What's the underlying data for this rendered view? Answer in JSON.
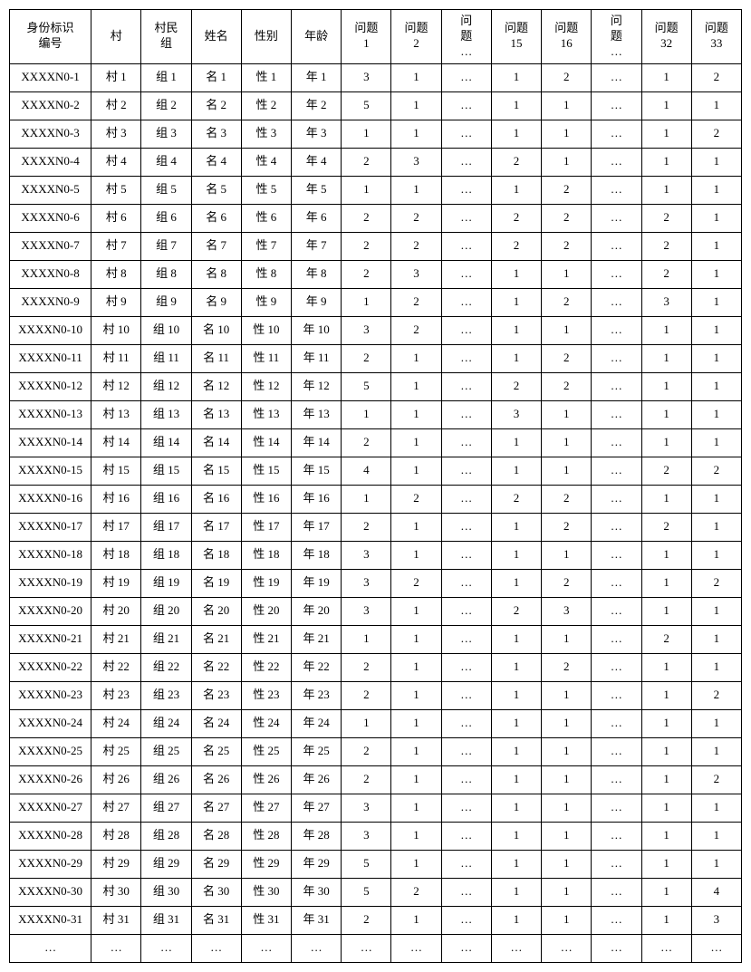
{
  "table": {
    "columns": [
      {
        "key": "id",
        "label": "身份标识\n编号",
        "class": "col-id"
      },
      {
        "key": "village",
        "label": "村",
        "class": "col-village"
      },
      {
        "key": "group",
        "label": "村民\n组",
        "class": "col-group"
      },
      {
        "key": "name",
        "label": "姓名",
        "class": "col-name"
      },
      {
        "key": "gender",
        "label": "性别",
        "class": "col-gender"
      },
      {
        "key": "age",
        "label": "年龄",
        "class": "col-age"
      },
      {
        "key": "q1",
        "label": "问题\n1",
        "class": "col-q"
      },
      {
        "key": "q2",
        "label": "问题\n2",
        "class": "col-q"
      },
      {
        "key": "qdots1",
        "label": "问\n题\n…",
        "class": "col-q"
      },
      {
        "key": "q15",
        "label": "问题\n15",
        "class": "col-q"
      },
      {
        "key": "q16",
        "label": "问题\n16",
        "class": "col-q"
      },
      {
        "key": "qdots2",
        "label": "问\n题\n…",
        "class": "col-q"
      },
      {
        "key": "q32",
        "label": "问题\n32",
        "class": "col-q"
      },
      {
        "key": "q33",
        "label": "问题\n33",
        "class": "col-q"
      }
    ],
    "rows": [
      {
        "id": "XXXXN0-1",
        "village": "村 1",
        "group": "组 1",
        "name": "名 1",
        "gender": "性 1",
        "age": "年 1",
        "q1": "3",
        "q2": "1",
        "qdots1": "…",
        "q15": "1",
        "q16": "2",
        "qdots2": "…",
        "q32": "1",
        "q33": "2"
      },
      {
        "id": "XXXXN0-2",
        "village": "村 2",
        "group": "组 2",
        "name": "名 2",
        "gender": "性 2",
        "age": "年 2",
        "q1": "5",
        "q2": "1",
        "qdots1": "…",
        "q15": "1",
        "q16": "1",
        "qdots2": "…",
        "q32": "1",
        "q33": "1"
      },
      {
        "id": "XXXXN0-3",
        "village": "村 3",
        "group": "组 3",
        "name": "名 3",
        "gender": "性 3",
        "age": "年 3",
        "q1": "1",
        "q2": "1",
        "qdots1": "…",
        "q15": "1",
        "q16": "1",
        "qdots2": "…",
        "q32": "1",
        "q33": "2"
      },
      {
        "id": "XXXXN0-4",
        "village": "村 4",
        "group": "组 4",
        "name": "名 4",
        "gender": "性 4",
        "age": "年 4",
        "q1": "2",
        "q2": "3",
        "qdots1": "…",
        "q15": "2",
        "q16": "1",
        "qdots2": "…",
        "q32": "1",
        "q33": "1"
      },
      {
        "id": "XXXXN0-5",
        "village": "村 5",
        "group": "组 5",
        "name": "名 5",
        "gender": "性 5",
        "age": "年 5",
        "q1": "1",
        "q2": "1",
        "qdots1": "…",
        "q15": "1",
        "q16": "2",
        "qdots2": "…",
        "q32": "1",
        "q33": "1"
      },
      {
        "id": "XXXXN0-6",
        "village": "村 6",
        "group": "组 6",
        "name": "名 6",
        "gender": "性 6",
        "age": "年 6",
        "q1": "2",
        "q2": "2",
        "qdots1": "…",
        "q15": "2",
        "q16": "2",
        "qdots2": "…",
        "q32": "2",
        "q33": "1"
      },
      {
        "id": "XXXXN0-7",
        "village": "村 7",
        "group": "组 7",
        "name": "名 7",
        "gender": "性 7",
        "age": "年 7",
        "q1": "2",
        "q2": "2",
        "qdots1": "…",
        "q15": "2",
        "q16": "2",
        "qdots2": "…",
        "q32": "2",
        "q33": "1"
      },
      {
        "id": "XXXXN0-8",
        "village": "村 8",
        "group": "组 8",
        "name": "名 8",
        "gender": "性 8",
        "age": "年 8",
        "q1": "2",
        "q2": "3",
        "qdots1": "…",
        "q15": "1",
        "q16": "1",
        "qdots2": "…",
        "q32": "2",
        "q33": "1"
      },
      {
        "id": "XXXXN0-9",
        "village": "村 9",
        "group": "组 9",
        "name": "名 9",
        "gender": "性 9",
        "age": "年 9",
        "q1": "1",
        "q2": "2",
        "qdots1": "…",
        "q15": "1",
        "q16": "2",
        "qdots2": "…",
        "q32": "3",
        "q33": "1"
      },
      {
        "id": "XXXXN0-10",
        "village": "村 10",
        "group": "组 10",
        "name": "名 10",
        "gender": "性 10",
        "age": "年 10",
        "q1": "3",
        "q2": "2",
        "qdots1": "…",
        "q15": "1",
        "q16": "1",
        "qdots2": "…",
        "q32": "1",
        "q33": "1"
      },
      {
        "id": "XXXXN0-11",
        "village": "村 11",
        "group": "组 11",
        "name": "名 11",
        "gender": "性 11",
        "age": "年 11",
        "q1": "2",
        "q2": "1",
        "qdots1": "…",
        "q15": "1",
        "q16": "2",
        "qdots2": "…",
        "q32": "1",
        "q33": "1"
      },
      {
        "id": "XXXXN0-12",
        "village": "村 12",
        "group": "组 12",
        "name": "名 12",
        "gender": "性 12",
        "age": "年 12",
        "q1": "5",
        "q2": "1",
        "qdots1": "…",
        "q15": "2",
        "q16": "2",
        "qdots2": "…",
        "q32": "1",
        "q33": "1"
      },
      {
        "id": "XXXXN0-13",
        "village": "村 13",
        "group": "组 13",
        "name": "名 13",
        "gender": "性 13",
        "age": "年 13",
        "q1": "1",
        "q2": "1",
        "qdots1": "…",
        "q15": "3",
        "q16": "1",
        "qdots2": "…",
        "q32": "1",
        "q33": "1"
      },
      {
        "id": "XXXXN0-14",
        "village": "村 14",
        "group": "组 14",
        "name": "名 14",
        "gender": "性 14",
        "age": "年 14",
        "q1": "2",
        "q2": "1",
        "qdots1": "…",
        "q15": "1",
        "q16": "1",
        "qdots2": "…",
        "q32": "1",
        "q33": "1"
      },
      {
        "id": "XXXXN0-15",
        "village": "村 15",
        "group": "组 15",
        "name": "名 15",
        "gender": "性 15",
        "age": "年 15",
        "q1": "4",
        "q2": "1",
        "qdots1": "…",
        "q15": "1",
        "q16": "1",
        "qdots2": "…",
        "q32": "2",
        "q33": "2"
      },
      {
        "id": "XXXXN0-16",
        "village": "村 16",
        "group": "组 16",
        "name": "名 16",
        "gender": "性 16",
        "age": "年 16",
        "q1": "1",
        "q2": "2",
        "qdots1": "…",
        "q15": "2",
        "q16": "2",
        "qdots2": "…",
        "q32": "1",
        "q33": "1"
      },
      {
        "id": "XXXXN0-17",
        "village": "村 17",
        "group": "组 17",
        "name": "名 17",
        "gender": "性 17",
        "age": "年 17",
        "q1": "2",
        "q2": "1",
        "qdots1": "…",
        "q15": "1",
        "q16": "2",
        "qdots2": "…",
        "q32": "2",
        "q33": "1"
      },
      {
        "id": "XXXXN0-18",
        "village": "村 18",
        "group": "组 18",
        "name": "名 18",
        "gender": "性 18",
        "age": "年 18",
        "q1": "3",
        "q2": "1",
        "qdots1": "…",
        "q15": "1",
        "q16": "1",
        "qdots2": "…",
        "q32": "1",
        "q33": "1"
      },
      {
        "id": "XXXXN0-19",
        "village": "村 19",
        "group": "组 19",
        "name": "名 19",
        "gender": "性 19",
        "age": "年 19",
        "q1": "3",
        "q2": "2",
        "qdots1": "…",
        "q15": "1",
        "q16": "2",
        "qdots2": "…",
        "q32": "1",
        "q33": "2"
      },
      {
        "id": "XXXXN0-20",
        "village": "村 20",
        "group": "组 20",
        "name": "名 20",
        "gender": "性 20",
        "age": "年 20",
        "q1": "3",
        "q2": "1",
        "qdots1": "…",
        "q15": "2",
        "q16": "3",
        "qdots2": "…",
        "q32": "1",
        "q33": "1"
      },
      {
        "id": "XXXXN0-21",
        "village": "村 21",
        "group": "组 21",
        "name": "名 21",
        "gender": "性 21",
        "age": "年 21",
        "q1": "1",
        "q2": "1",
        "qdots1": "…",
        "q15": "1",
        "q16": "1",
        "qdots2": "…",
        "q32": "2",
        "q33": "1"
      },
      {
        "id": "XXXXN0-22",
        "village": "村 22",
        "group": "组 22",
        "name": "名 22",
        "gender": "性 22",
        "age": "年 22",
        "q1": "2",
        "q2": "1",
        "qdots1": "…",
        "q15": "1",
        "q16": "2",
        "qdots2": "…",
        "q32": "1",
        "q33": "1"
      },
      {
        "id": "XXXXN0-23",
        "village": "村 23",
        "group": "组 23",
        "name": "名 23",
        "gender": "性 23",
        "age": "年 23",
        "q1": "2",
        "q2": "1",
        "qdots1": "…",
        "q15": "1",
        "q16": "1",
        "qdots2": "…",
        "q32": "1",
        "q33": "2"
      },
      {
        "id": "XXXXN0-24",
        "village": "村 24",
        "group": "组 24",
        "name": "名 24",
        "gender": "性 24",
        "age": "年 24",
        "q1": "1",
        "q2": "1",
        "qdots1": "…",
        "q15": "1",
        "q16": "1",
        "qdots2": "…",
        "q32": "1",
        "q33": "1"
      },
      {
        "id": "XXXXN0-25",
        "village": "村 25",
        "group": "组 25",
        "name": "名 25",
        "gender": "性 25",
        "age": "年 25",
        "q1": "2",
        "q2": "1",
        "qdots1": "…",
        "q15": "1",
        "q16": "1",
        "qdots2": "…",
        "q32": "1",
        "q33": "1"
      },
      {
        "id": "XXXXN0-26",
        "village": "村 26",
        "group": "组 26",
        "name": "名 26",
        "gender": "性 26",
        "age": "年 26",
        "q1": "2",
        "q2": "1",
        "qdots1": "…",
        "q15": "1",
        "q16": "1",
        "qdots2": "…",
        "q32": "1",
        "q33": "2"
      },
      {
        "id": "XXXXN0-27",
        "village": "村 27",
        "group": "组 27",
        "name": "名 27",
        "gender": "性 27",
        "age": "年 27",
        "q1": "3",
        "q2": "1",
        "qdots1": "…",
        "q15": "1",
        "q16": "1",
        "qdots2": "…",
        "q32": "1",
        "q33": "1"
      },
      {
        "id": "XXXXN0-28",
        "village": "村 28",
        "group": "组 28",
        "name": "名 28",
        "gender": "性 28",
        "age": "年 28",
        "q1": "3",
        "q2": "1",
        "qdots1": "…",
        "q15": "1",
        "q16": "1",
        "qdots2": "…",
        "q32": "1",
        "q33": "1"
      },
      {
        "id": "XXXXN0-29",
        "village": "村 29",
        "group": "组 29",
        "name": "名 29",
        "gender": "性 29",
        "age": "年 29",
        "q1": "5",
        "q2": "1",
        "qdots1": "…",
        "q15": "1",
        "q16": "1",
        "qdots2": "…",
        "q32": "1",
        "q33": "1"
      },
      {
        "id": "XXXXN0-30",
        "village": "村 30",
        "group": "组 30",
        "name": "名 30",
        "gender": "性 30",
        "age": "年 30",
        "q1": "5",
        "q2": "2",
        "qdots1": "…",
        "q15": "1",
        "q16": "1",
        "qdots2": "…",
        "q32": "1",
        "q33": "4"
      },
      {
        "id": "XXXXN0-31",
        "village": "村 31",
        "group": "组 31",
        "name": "名 31",
        "gender": "性 31",
        "age": "年 31",
        "q1": "2",
        "q2": "1",
        "qdots1": "…",
        "q15": "1",
        "q16": "1",
        "qdots2": "…",
        "q32": "1",
        "q33": "3"
      },
      {
        "id": "…",
        "village": "…",
        "group": "…",
        "name": "…",
        "gender": "…",
        "age": "…",
        "q1": "…",
        "q2": "…",
        "qdots1": "…",
        "q15": "…",
        "q16": "…",
        "qdots2": "…",
        "q32": "…",
        "q33": "…"
      }
    ],
    "border_color": "#000000",
    "background_color": "#ffffff",
    "text_color": "#000000",
    "font_family": "SimSun",
    "cell_fontsize": 13
  }
}
